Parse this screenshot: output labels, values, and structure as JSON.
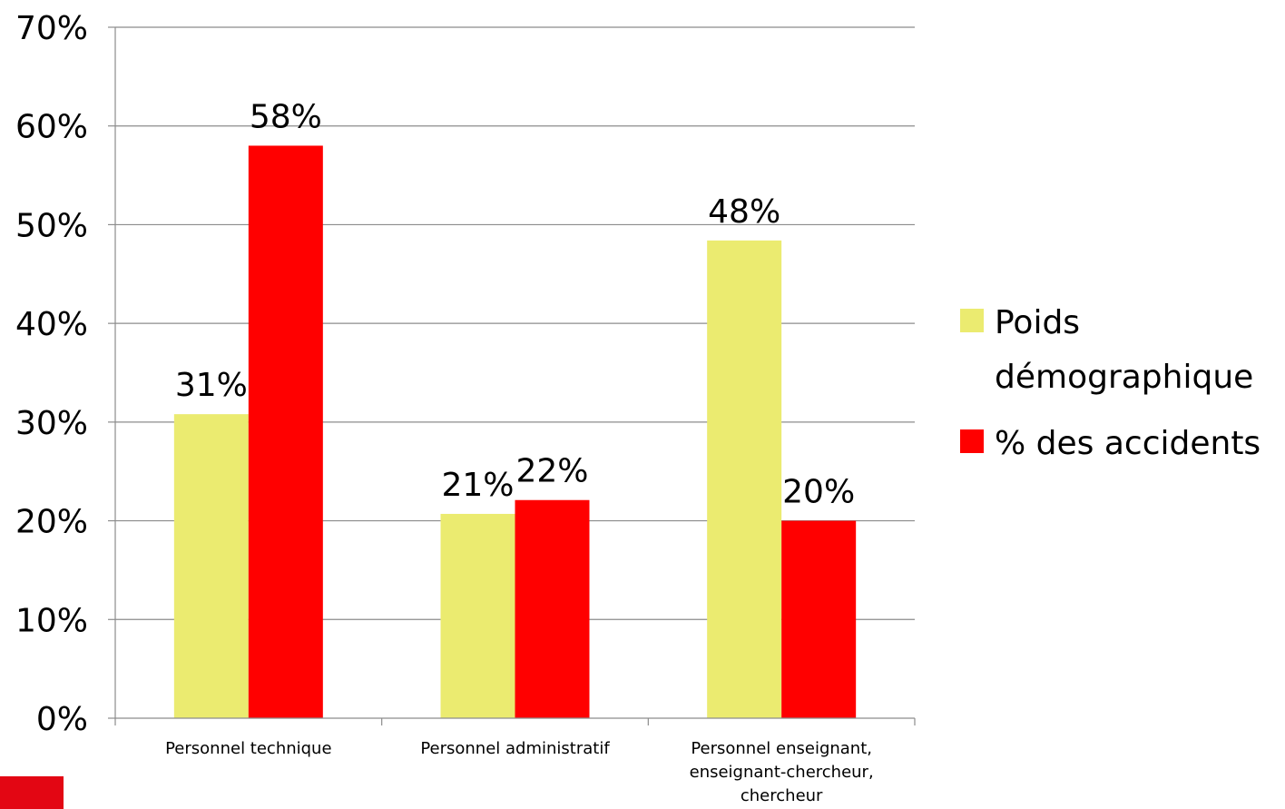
{
  "chart_data": {
    "type": "bar",
    "categories": [
      [
        "Personnel technique"
      ],
      [
        "Personnel administratif"
      ],
      [
        "Personnel enseignant,",
        "enseignant-chercheur,",
        "chercheur"
      ]
    ],
    "series": [
      {
        "name": [
          "Poids",
          "démographique"
        ],
        "values": [
          31,
          21,
          48
        ],
        "exact": [
          30.8,
          20.7,
          48.4
        ],
        "labels": [
          "31%",
          "21%",
          "48%"
        ],
        "color": "#ebeb70"
      },
      {
        "name": [
          "% des accidents"
        ],
        "values": [
          58,
          22,
          20
        ],
        "exact": [
          58,
          22.1,
          20
        ],
        "labels": [
          "58%",
          "22%",
          "20%"
        ],
        "color": "#ff0000"
      }
    ],
    "yticks": [
      "0%",
      "10%",
      "20%",
      "30%",
      "40%",
      "50%",
      "60%",
      "70%"
    ],
    "ylim": [
      0,
      70
    ],
    "grid": true,
    "legend": "right"
  },
  "colors": {
    "corner_mark": "#e30613",
    "grid": "#8c8c8c"
  }
}
